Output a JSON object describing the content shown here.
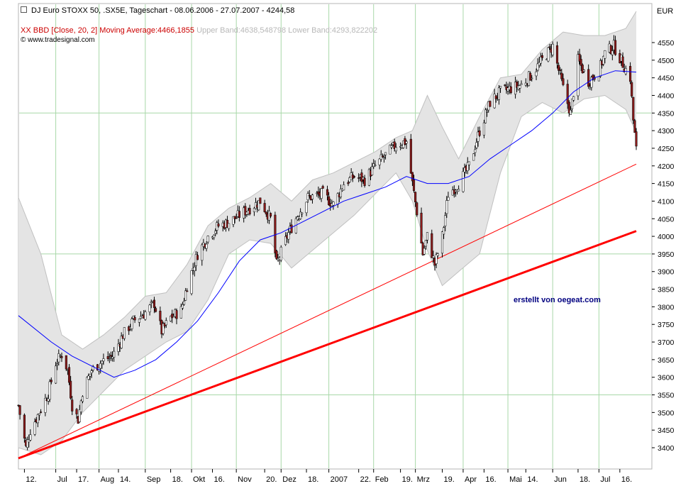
{
  "header": {
    "title": "DJ Euro STOXX 50, .SX5E, Tageschart - 08.06.2006 - 27.07.2007 - 4244,58",
    "indicator_name": "XX BBD [Close, 20, 2]",
    "ma_label": "Moving Average:4466,1855",
    "upper_label": "Upper Band:4638,548798",
    "lower_label": "Lower Band:4293,822202",
    "source": "© www.tradesignal.com"
  },
  "unit": "EUR",
  "credit": "erstellt von oegeat.com",
  "colors": {
    "background": "#ffffff",
    "grid": "#a8d8a8",
    "band_fill": "#e4e4e4",
    "band_stroke": "#c0c0c0",
    "moving_average": "#0000ff",
    "trendline": "#ff0000",
    "candle_up": "#ffffff",
    "candle_down": "#8b1a1a",
    "candle_outline": "#000000"
  },
  "chart_data": {
    "type": "candlestick",
    "ylim": [
      3360,
      4600
    ],
    "y_ticks": [
      3400,
      3450,
      3500,
      3550,
      3600,
      3650,
      3700,
      3750,
      3800,
      3850,
      3900,
      3950,
      4000,
      4050,
      4100,
      4150,
      4200,
      4250,
      4300,
      4350,
      4400,
      4450,
      4500,
      4550
    ],
    "x_range": [
      "2006-06-08",
      "2007-07-27"
    ],
    "x_ticks": [
      {
        "label": "12.",
        "date": "2006-06-12"
      },
      {
        "label": "Jul",
        "date": "2006-07-03"
      },
      {
        "label": "17.",
        "date": "2006-07-17"
      },
      {
        "label": "Aug",
        "date": "2006-08-01"
      },
      {
        "label": "14.",
        "date": "2006-08-14"
      },
      {
        "label": "Sep",
        "date": "2006-09-01"
      },
      {
        "label": "18.",
        "date": "2006-09-18"
      },
      {
        "label": "Okt",
        "date": "2006-10-02"
      },
      {
        "label": "16.",
        "date": "2006-10-16"
      },
      {
        "label": "Nov",
        "date": "2006-11-01"
      },
      {
        "label": "20.",
        "date": "2006-11-20"
      },
      {
        "label": "Dez",
        "date": "2006-12-01"
      },
      {
        "label": "18.",
        "date": "2006-12-18"
      },
      {
        "label": "2007",
        "date": "2007-01-02"
      },
      {
        "label": "22.",
        "date": "2007-01-22"
      },
      {
        "label": "Feb",
        "date": "2007-02-01"
      },
      {
        "label": "19.",
        "date": "2007-02-19"
      },
      {
        "label": "Mrz",
        "date": "2007-03-01"
      },
      {
        "label": "19.",
        "date": "2007-03-19"
      },
      {
        "label": "Apr",
        "date": "2007-04-02"
      },
      {
        "label": "16.",
        "date": "2007-04-16"
      },
      {
        "label": "Mai",
        "date": "2007-05-02"
      },
      {
        "label": "14.",
        "date": "2007-05-14"
      },
      {
        "label": "Jun",
        "date": "2007-06-01"
      },
      {
        "label": "18.",
        "date": "2007-06-18"
      },
      {
        "label": "Jul",
        "date": "2007-07-02"
      },
      {
        "label": "16.",
        "date": "2007-07-16"
      }
    ],
    "vertical_gridlines": [
      "2006-07-03",
      "2006-08-01",
      "2006-09-01",
      "2006-10-02",
      "2006-11-01",
      "2006-12-01",
      "2007-01-02",
      "2007-02-01",
      "2007-03-01",
      "2007-04-02",
      "2007-05-02",
      "2007-06-01",
      "2007-07-02"
    ],
    "horizontal_gridlines": [
      3550,
      3950,
      4350
    ],
    "close_path": [
      [
        "2006-06-08",
        3520
      ],
      [
        "2006-06-13",
        3400
      ],
      [
        "2006-06-16",
        3450
      ],
      [
        "2006-06-23",
        3510
      ],
      [
        "2006-06-28",
        3555
      ],
      [
        "2006-07-03",
        3640
      ],
      [
        "2006-07-07",
        3665
      ],
      [
        "2006-07-11",
        3620
      ],
      [
        "2006-07-14",
        3520
      ],
      [
        "2006-07-18",
        3480
      ],
      [
        "2006-07-21",
        3560
      ],
      [
        "2006-07-27",
        3620
      ],
      [
        "2006-08-03",
        3645
      ],
      [
        "2006-08-10",
        3660
      ],
      [
        "2006-08-17",
        3720
      ],
      [
        "2006-08-24",
        3760
      ],
      [
        "2006-08-31",
        3780
      ],
      [
        "2006-09-07",
        3810
      ],
      [
        "2006-09-12",
        3730
      ],
      [
        "2006-09-18",
        3770
      ],
      [
        "2006-09-25",
        3790
      ],
      [
        "2006-09-29",
        3860
      ],
      [
        "2006-10-06",
        3950
      ],
      [
        "2006-10-13",
        4000
      ],
      [
        "2006-10-20",
        4030
      ],
      [
        "2006-10-27",
        4040
      ],
      [
        "2006-11-03",
        4060
      ],
      [
        "2006-11-10",
        4080
      ],
      [
        "2006-11-17",
        4100
      ],
      [
        "2006-11-24",
        4050
      ],
      [
        "2006-11-28",
        3920
      ],
      [
        "2006-12-05",
        4000
      ],
      [
        "2006-12-12",
        4060
      ],
      [
        "2006-12-19",
        4110
      ],
      [
        "2006-12-29",
        4120
      ],
      [
        "2007-01-05",
        4090
      ],
      [
        "2007-01-12",
        4150
      ],
      [
        "2007-01-19",
        4170
      ],
      [
        "2007-01-26",
        4160
      ],
      [
        "2007-02-02",
        4200
      ],
      [
        "2007-02-09",
        4230
      ],
      [
        "2007-02-16",
        4260
      ],
      [
        "2007-02-23",
        4270
      ],
      [
        "2007-02-27",
        4150
      ],
      [
        "2007-03-02",
        4070
      ],
      [
        "2007-03-06",
        3950
      ],
      [
        "2007-03-09",
        4000
      ],
      [
        "2007-03-14",
        3920
      ],
      [
        "2007-03-19",
        4000
      ],
      [
        "2007-03-23",
        4120
      ],
      [
        "2007-03-30",
        4150
      ],
      [
        "2007-04-06",
        4200
      ],
      [
        "2007-04-13",
        4300
      ],
      [
        "2007-04-20",
        4380
      ],
      [
        "2007-04-27",
        4410
      ],
      [
        "2007-05-04",
        4420
      ],
      [
        "2007-05-11",
        4430
      ],
      [
        "2007-05-18",
        4460
      ],
      [
        "2007-05-25",
        4500
      ],
      [
        "2007-06-01",
        4540
      ],
      [
        "2007-06-08",
        4420
      ],
      [
        "2007-06-13",
        4350
      ],
      [
        "2007-06-18",
        4500
      ],
      [
        "2007-06-25",
        4440
      ],
      [
        "2007-07-02",
        4470
      ],
      [
        "2007-07-06",
        4520
      ],
      [
        "2007-07-12",
        4540
      ],
      [
        "2007-07-18",
        4490
      ],
      [
        "2007-07-23",
        4450
      ],
      [
        "2007-07-25",
        4330
      ],
      [
        "2007-07-27",
        4244.58
      ]
    ],
    "ma_path": [
      [
        "2006-06-08",
        3775
      ],
      [
        "2006-06-30",
        3700
      ],
      [
        "2006-07-14",
        3660
      ],
      [
        "2006-07-28",
        3630
      ],
      [
        "2006-08-11",
        3600
      ],
      [
        "2006-08-25",
        3620
      ],
      [
        "2006-09-08",
        3650
      ],
      [
        "2006-09-22",
        3700
      ],
      [
        "2006-10-06",
        3760
      ],
      [
        "2006-10-20",
        3840
      ],
      [
        "2006-11-03",
        3930
      ],
      [
        "2006-11-17",
        3990
      ],
      [
        "2006-12-01",
        4010
      ],
      [
        "2006-12-15",
        4040
      ],
      [
        "2006-12-29",
        4070
      ],
      [
        "2007-01-12",
        4100
      ],
      [
        "2007-01-26",
        4120
      ],
      [
        "2007-02-09",
        4140
      ],
      [
        "2007-02-23",
        4170
      ],
      [
        "2007-03-02",
        4160
      ],
      [
        "2007-03-09",
        4150
      ],
      [
        "2007-03-23",
        4150
      ],
      [
        "2007-04-06",
        4170
      ],
      [
        "2007-04-20",
        4220
      ],
      [
        "2007-05-04",
        4260
      ],
      [
        "2007-05-18",
        4300
      ],
      [
        "2007-06-01",
        4350
      ],
      [
        "2007-06-15",
        4410
      ],
      [
        "2007-06-29",
        4450
      ],
      [
        "2007-07-13",
        4470
      ],
      [
        "2007-07-27",
        4466.1855
      ]
    ],
    "upper_band_path": [
      [
        "2006-06-08",
        4110
      ],
      [
        "2006-06-23",
        3950
      ],
      [
        "2006-07-07",
        3720
      ],
      [
        "2006-07-21",
        3680
      ],
      [
        "2006-08-04",
        3720
      ],
      [
        "2006-08-18",
        3770
      ],
      [
        "2006-09-01",
        3830
      ],
      [
        "2006-09-15",
        3840
      ],
      [
        "2006-09-29",
        3920
      ],
      [
        "2006-10-13",
        4030
      ],
      [
        "2006-10-27",
        4080
      ],
      [
        "2006-11-10",
        4110
      ],
      [
        "2006-11-24",
        4150
      ],
      [
        "2006-12-08",
        4100
      ],
      [
        "2006-12-22",
        4160
      ],
      [
        "2007-01-05",
        4180
      ],
      [
        "2007-01-19",
        4210
      ],
      [
        "2007-02-02",
        4240
      ],
      [
        "2007-02-16",
        4280
      ],
      [
        "2007-02-27",
        4300
      ],
      [
        "2007-03-09",
        4400
      ],
      [
        "2007-03-19",
        4310
      ],
      [
        "2007-03-30",
        4220
      ],
      [
        "2007-04-13",
        4340
      ],
      [
        "2007-04-27",
        4450
      ],
      [
        "2007-05-11",
        4460
      ],
      [
        "2007-05-25",
        4530
      ],
      [
        "2007-06-08",
        4580
      ],
      [
        "2007-06-22",
        4570
      ],
      [
        "2007-07-06",
        4570
      ],
      [
        "2007-07-20",
        4590
      ],
      [
        "2007-07-27",
        4638.548798
      ]
    ],
    "lower_band_path": [
      [
        "2006-06-08",
        3400
      ],
      [
        "2006-06-23",
        3380
      ],
      [
        "2006-07-07",
        3420
      ],
      [
        "2006-07-21",
        3500
      ],
      [
        "2006-08-04",
        3560
      ],
      [
        "2006-08-18",
        3620
      ],
      [
        "2006-09-01",
        3660
      ],
      [
        "2006-09-15",
        3700
      ],
      [
        "2006-09-29",
        3730
      ],
      [
        "2006-10-13",
        3820
      ],
      [
        "2006-10-27",
        3950
      ],
      [
        "2006-11-10",
        3990
      ],
      [
        "2006-11-24",
        3980
      ],
      [
        "2006-12-08",
        3910
      ],
      [
        "2006-12-22",
        3960
      ],
      [
        "2007-01-05",
        4010
      ],
      [
        "2007-01-19",
        4060
      ],
      [
        "2007-02-02",
        4120
      ],
      [
        "2007-02-16",
        4180
      ],
      [
        "2007-02-27",
        4100
      ],
      [
        "2007-03-09",
        3960
      ],
      [
        "2007-03-19",
        3860
      ],
      [
        "2007-03-30",
        3900
      ],
      [
        "2007-04-13",
        3950
      ],
      [
        "2007-04-27",
        4180
      ],
      [
        "2007-05-11",
        4340
      ],
      [
        "2007-05-25",
        4380
      ],
      [
        "2007-06-08",
        4350
      ],
      [
        "2007-06-22",
        4390
      ],
      [
        "2007-07-06",
        4400
      ],
      [
        "2007-07-20",
        4360
      ],
      [
        "2007-07-27",
        4293.822202
      ]
    ],
    "trendlines": [
      {
        "from": [
          "2006-06-08",
          3370
        ],
        "to": [
          "2007-07-27",
          4015
        ],
        "width": 3
      },
      {
        "from": [
          "2006-06-08",
          3370
        ],
        "to": [
          "2007-07-27",
          4205
        ],
        "width": 1
      }
    ]
  }
}
